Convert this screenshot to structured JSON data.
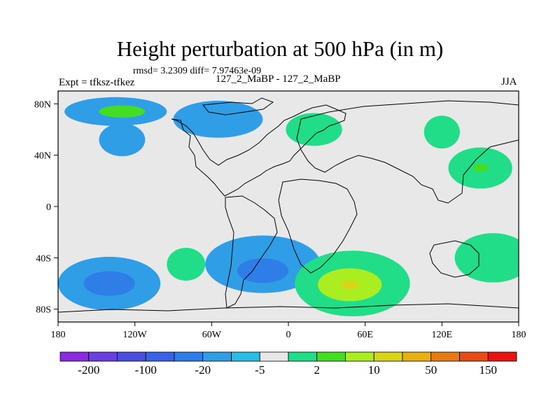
{
  "chart_data": {
    "type": "heatmap",
    "title": "Height perturbation at 500 hPa (in m)",
    "stats": "rmsd= 3.2309 diff= 7.97463e-09",
    "experiment": "Expt = tfksz-tfkez",
    "subtitle": "127_2_MaBP - 127_2_MaBP",
    "season": "JJA",
    "xlim": [
      -180,
      180
    ],
    "ylim": [
      -90,
      90
    ],
    "x_ticks": [
      {
        "value": -180,
        "label": "180"
      },
      {
        "value": -120,
        "label": "120W"
      },
      {
        "value": -60,
        "label": "60W"
      },
      {
        "value": 0,
        "label": "0"
      },
      {
        "value": 60,
        "label": "60E"
      },
      {
        "value": 120,
        "label": "120E"
      },
      {
        "value": 180,
        "label": "180"
      }
    ],
    "y_ticks": [
      {
        "value": 80,
        "label": "80N"
      },
      {
        "value": 40,
        "label": "40N"
      },
      {
        "value": 0,
        "label": "0"
      },
      {
        "value": -40,
        "label": "40S"
      },
      {
        "value": -80,
        "label": "80S"
      }
    ],
    "colorbar": {
      "colors": [
        "#8a2be2",
        "#6a3fe0",
        "#4b4fe0",
        "#3a62e6",
        "#2f7de6",
        "#2f9ee6",
        "#2bbce6",
        "#e8e8e8",
        "#22dd88",
        "#44dd22",
        "#aaee22",
        "#d8d418",
        "#e8b015",
        "#e87a14",
        "#e84b14",
        "#e81414"
      ],
      "labels": [
        {
          "boundary": 1,
          "text": "-200"
        },
        {
          "boundary": 3,
          "text": "-100"
        },
        {
          "boundary": 5,
          "text": "-20"
        },
        {
          "boundary": 7,
          "text": "-5"
        },
        {
          "boundary": 9,
          "text": "2"
        },
        {
          "boundary": 11,
          "text": "10"
        },
        {
          "boundary": 13,
          "text": "50"
        },
        {
          "boundary": 15,
          "text": "150"
        }
      ]
    },
    "field_features": [
      {
        "region": "NH Atlantic/Pacific high-latitude",
        "lon": -135,
        "lat": 74,
        "rx": 40,
        "ry": 7,
        "level": -2
      },
      {
        "region": "Pacific core",
        "lon": -130,
        "lat": 74,
        "rx": 18,
        "ry": 3,
        "level": 2
      },
      {
        "region": "N Pacific low",
        "lon": -130,
        "lat": 52,
        "rx": 18,
        "ry": 8,
        "level": -2
      },
      {
        "region": "N Atlantic",
        "lon": -55,
        "lat": 68,
        "rx": 35,
        "ry": 9,
        "level": -2
      },
      {
        "region": "Europe",
        "lon": 20,
        "lat": 60,
        "rx": 22,
        "ry": 8,
        "level": 1
      },
      {
        "region": "Siberia",
        "lon": 120,
        "lat": 58,
        "rx": 14,
        "ry": 8,
        "level": 1
      },
      {
        "region": "Asia",
        "lon": 150,
        "lat": 30,
        "rx": 25,
        "ry": 10,
        "level": 1
      },
      {
        "region": "E Asia core",
        "lon": 150,
        "lat": 30,
        "rx": 6,
        "ry": 2,
        "level": 2
      },
      {
        "region": "S Atlantic low",
        "lon": -20,
        "lat": -45,
        "rx": 45,
        "ry": 14,
        "level": -2
      },
      {
        "region": "S Atlantic core",
        "lon": -20,
        "lat": -50,
        "rx": 20,
        "ry": 6,
        "level": -3
      },
      {
        "region": "Indian Ocean high",
        "lon": 50,
        "lat": -60,
        "rx": 45,
        "ry": 16,
        "level": 1
      },
      {
        "region": "Indian Ocean core",
        "lon": 48,
        "lat": -61,
        "rx": 25,
        "ry": 8,
        "level": 3
      },
      {
        "region": "Indian Ocean center",
        "lon": 48,
        "lat": -61,
        "rx": 7,
        "ry": 2,
        "level": 4
      },
      {
        "region": "S Pacific low",
        "lon": -140,
        "lat": -60,
        "rx": 40,
        "ry": 13,
        "level": -2
      },
      {
        "region": "S Pacific core",
        "lon": -140,
        "lat": -60,
        "rx": 20,
        "ry": 6,
        "level": -3
      },
      {
        "region": "SW Pacific high",
        "lon": 160,
        "lat": -40,
        "rx": 30,
        "ry": 12,
        "level": 1
      },
      {
        "region": "SE Pacific high",
        "lon": -80,
        "lat": -45,
        "rx": 15,
        "ry": 8,
        "level": 1
      }
    ]
  }
}
